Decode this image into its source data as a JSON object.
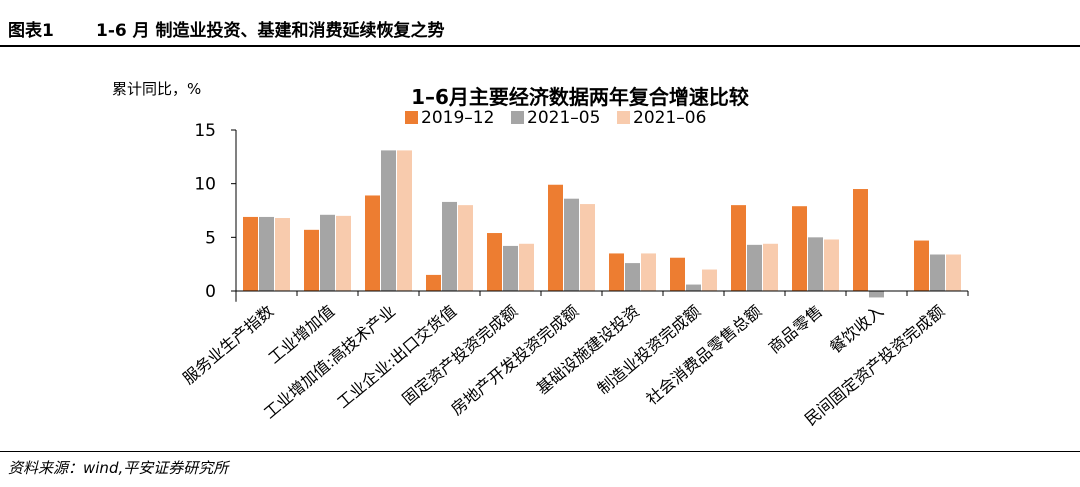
{
  "figure": {
    "number": "图表1",
    "title": "1-6 月 制造业投资、基建和消费延续恢复之势",
    "source": "资料来源：wind,平安证券研究所"
  },
  "chart_data": {
    "type": "bar",
    "title": "1–6月主要经济数据两年复合增速比较",
    "ylabel": "累计同比，%",
    "ylim": [
      -1,
      15
    ],
    "yticks": [
      0,
      5,
      10,
      15
    ],
    "grid": false,
    "legend_position": "top",
    "categories": [
      "服务业生产指数",
      "工业增加值",
      "工业增加值:高技术产业",
      "工业企业:出口交货值",
      "固定资产投资完成额",
      "房地产开发投资完成额",
      "基础设施建设投资",
      "制造业投资完成额",
      "社会消费品零售总额",
      "商品零售",
      "餐饮收入",
      "民间固定资产投资完成额"
    ],
    "series": [
      {
        "name": "2019–12",
        "color": "#ED7D31",
        "values": [
          6.9,
          5.7,
          8.9,
          1.5,
          5.4,
          9.9,
          3.5,
          3.1,
          8.0,
          7.9,
          9.5,
          4.7
        ]
      },
      {
        "name": "2021–05",
        "color": "#A5A5A5",
        "values": [
          6.9,
          7.1,
          13.1,
          8.3,
          4.2,
          8.6,
          2.6,
          0.6,
          4.3,
          5.0,
          -0.6,
          3.4
        ]
      },
      {
        "name": "2021–06",
        "color": "#F8CBAD",
        "values": [
          6.8,
          7.0,
          13.1,
          8.0,
          4.4,
          8.1,
          3.5,
          2.0,
          4.4,
          4.8,
          0.0,
          3.4
        ]
      }
    ]
  }
}
